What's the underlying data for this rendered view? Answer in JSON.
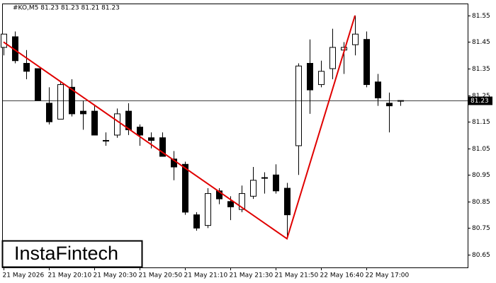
{
  "chart_data": {
    "type": "candlestick",
    "header": "#KO,M5  81.23 81.23 81.21 81.23",
    "categories": [
      "21 May 2026",
      null,
      null,
      null,
      "21 May 20:10",
      null,
      null,
      null,
      "21 May 20:30",
      null,
      null,
      null,
      "21 May 20:50",
      null,
      null,
      null,
      "21 May 21:10",
      null,
      null,
      null,
      "21 May 21:30",
      null,
      null,
      null,
      "21 May 21:50",
      null,
      null,
      null,
      "22 May 16:40",
      null,
      null,
      null,
      "22 May 17:00",
      null,
      null,
      null
    ],
    "open": [
      81.43,
      81.47,
      81.37,
      81.35,
      81.22,
      81.16,
      81.28,
      81.19,
      81.19,
      81.08,
      81.1,
      81.19,
      81.13,
      81.09,
      81.09,
      81.01,
      80.99,
      80.8,
      80.76,
      80.89,
      80.85,
      80.82,
      80.87,
      80.94,
      80.95,
      80.9,
      81.06,
      81.37,
      81.29,
      81.35,
      81.42,
      81.44,
      81.46,
      81.3,
      81.22,
      81.23
    ],
    "high": [
      81.48,
      81.49,
      81.42,
      81.35,
      81.28,
      81.3,
      81.31,
      81.23,
      81.21,
      81.11,
      81.2,
      81.22,
      81.14,
      81.11,
      81.11,
      81.04,
      81.0,
      80.81,
      80.9,
      80.9,
      80.87,
      80.91,
      80.98,
      80.96,
      80.99,
      80.92,
      81.37,
      81.46,
      81.38,
      81.5,
      81.45,
      81.55,
      81.49,
      81.33,
      81.26,
      81.23
    ],
    "low": [
      81.4,
      81.37,
      81.31,
      81.23,
      81.14,
      81.16,
      81.17,
      81.12,
      81.1,
      81.06,
      81.09,
      81.1,
      81.06,
      81.05,
      81.02,
      80.93,
      80.8,
      80.74,
      80.75,
      80.84,
      80.78,
      80.81,
      80.86,
      80.88,
      80.88,
      80.72,
      80.95,
      81.18,
      81.28,
      81.31,
      81.33,
      81.4,
      81.28,
      81.21,
      81.11,
      81.21
    ],
    "close": [
      81.48,
      81.38,
      81.34,
      81.23,
      81.15,
      81.29,
      81.18,
      81.18,
      81.1,
      81.08,
      81.18,
      81.12,
      81.1,
      81.08,
      81.02,
      80.98,
      80.81,
      80.75,
      80.88,
      80.86,
      80.83,
      80.88,
      80.93,
      80.94,
      80.89,
      80.8,
      81.36,
      81.27,
      81.34,
      81.43,
      81.43,
      81.48,
      81.29,
      81.24,
      81.21,
      81.23
    ],
    "up_color": "#ffffff",
    "down_color": "#000000",
    "last_price": 81.23,
    "pattern_line": {
      "color": "#e00000",
      "points": [
        {
          "index": 0,
          "value": 81.45
        },
        {
          "index": 25,
          "value": 80.71
        },
        {
          "index": 31,
          "value": 81.55
        }
      ]
    },
    "ylim": [
      80.602,
      81.595
    ],
    "yticks": [
      80.65,
      80.75,
      80.85,
      80.95,
      81.05,
      81.15,
      81.25,
      81.35,
      81.45,
      81.55
    ],
    "logo": "InstaFintech"
  }
}
